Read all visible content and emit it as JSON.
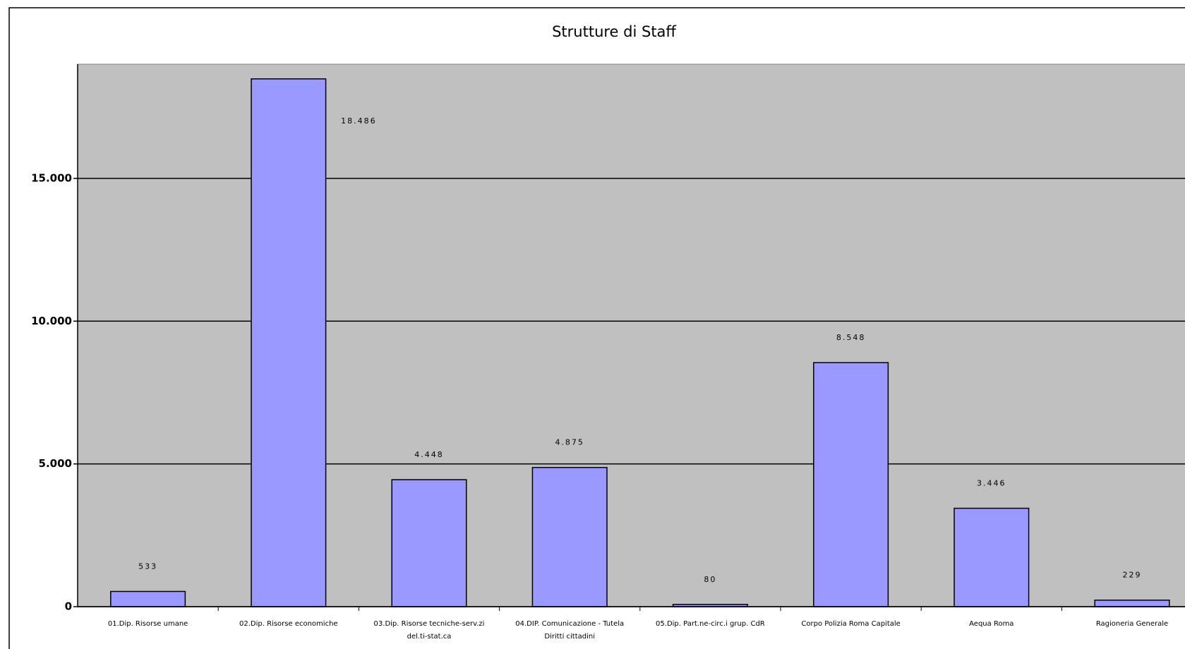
{
  "chart_data": {
    "type": "bar",
    "title": "Strutture di Staff",
    "categories": [
      "01.Dip. Risorse umane",
      "02.Dip. Risorse economiche",
      "03.Dip. Risorse tecniche-serv.zi del.ti-stat.ca",
      "04.DIP. Comunicazione - Tutela Diritti cittadini",
      "05.Dip. Part.ne-circ.i grup. CdR",
      "Corpo Polizia Roma Capitale",
      "Aequa Roma",
      "Ragioneria Generale"
    ],
    "values": [
      533,
      18486,
      4448,
      4875,
      80,
      8548,
      3446,
      229
    ],
    "value_labels": [
      "533",
      "18.486",
      "4.448",
      "4.875",
      "80",
      "8.548",
      "3.446",
      "229"
    ],
    "color": "#9999ff",
    "ylim": [
      0,
      19000
    ],
    "yticks": [
      0,
      {
        "value": 5000,
        "label": "5.000"
      },
      {
        "value": 10000,
        "label": "10.000"
      },
      {
        "value": 15000,
        "label": "15.000"
      }
    ],
    "grid": true
  }
}
